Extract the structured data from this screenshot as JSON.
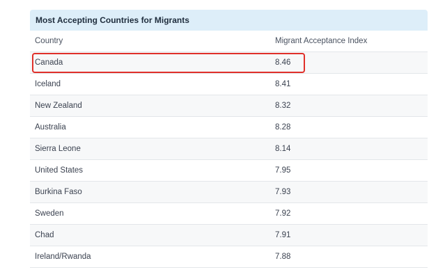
{
  "table": {
    "title": "Most Accepting Countries for Migrants",
    "columns": [
      "Country",
      "Migrant Acceptance Index"
    ],
    "rows": [
      {
        "country": "Canada",
        "index": "8.46"
      },
      {
        "country": "Iceland",
        "index": "8.41"
      },
      {
        "country": "New Zealand",
        "index": "8.32"
      },
      {
        "country": "Australia",
        "index": "8.28"
      },
      {
        "country": "Sierra Leone",
        "index": "8.14"
      },
      {
        "country": "United States",
        "index": "7.95"
      },
      {
        "country": "Burkina Faso",
        "index": "7.93"
      },
      {
        "country": "Sweden",
        "index": "7.92"
      },
      {
        "country": "Chad",
        "index": "7.91"
      },
      {
        "country": "Ireland/Rwanda",
        "index": "7.88"
      }
    ]
  },
  "highlight": {
    "row_country": "Canada",
    "color": "#e0302a"
  }
}
